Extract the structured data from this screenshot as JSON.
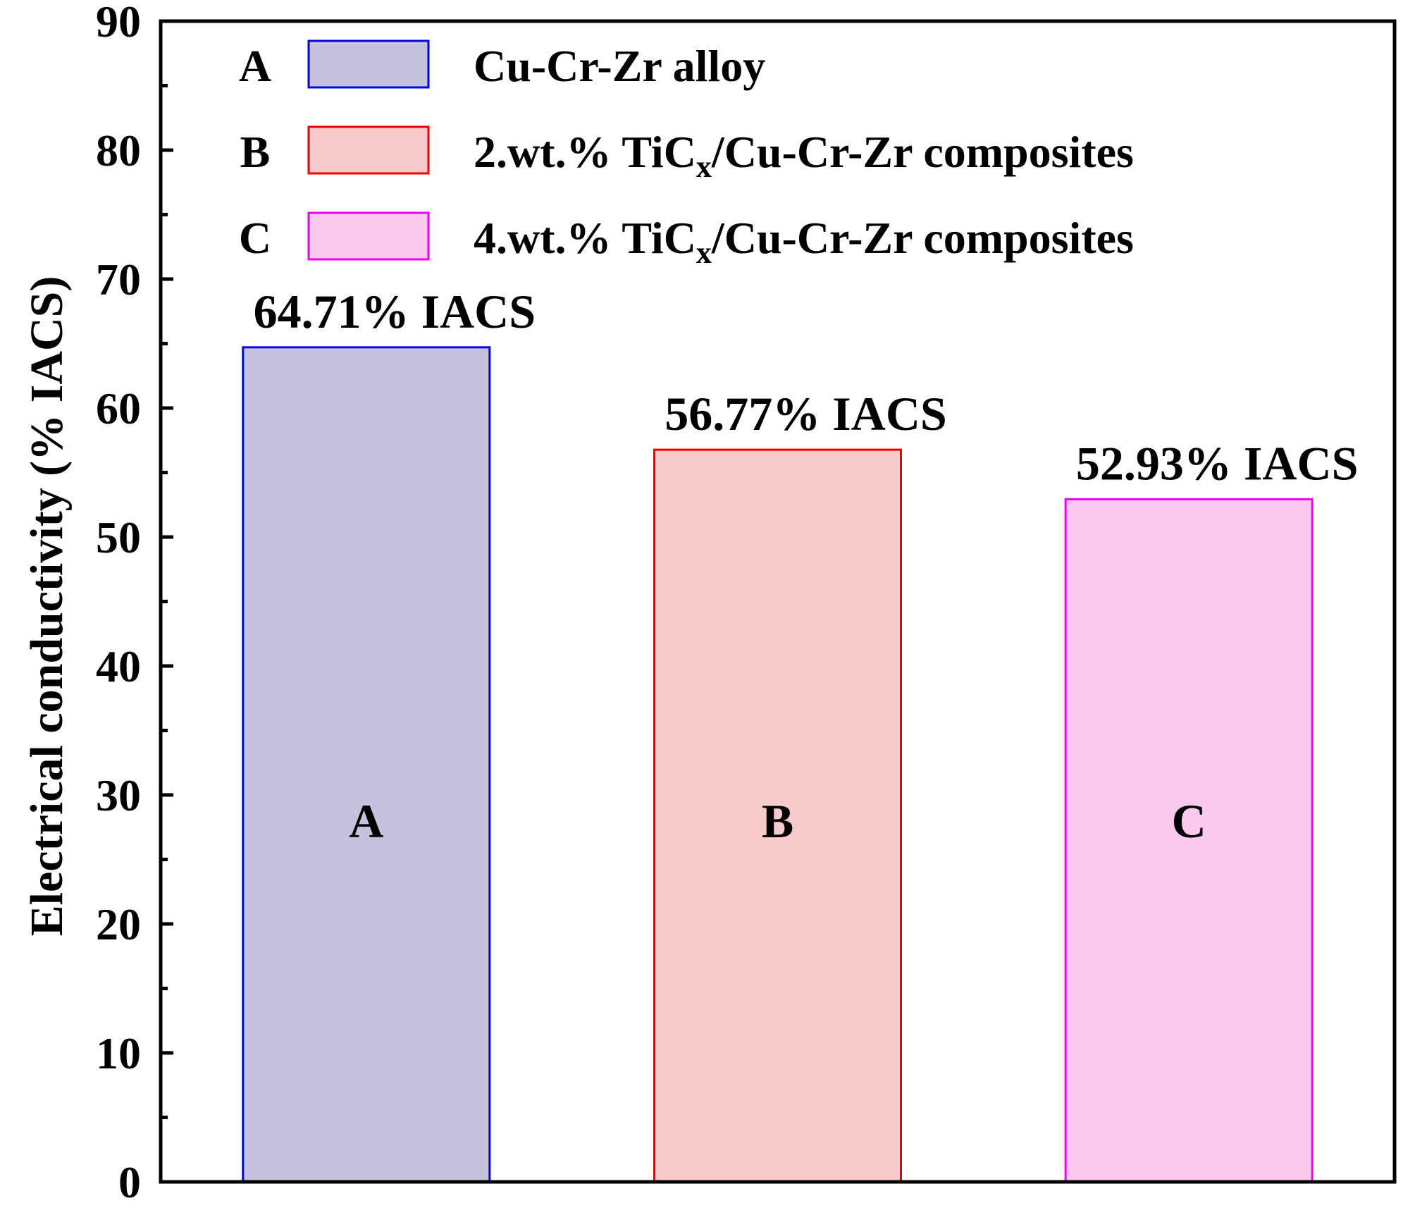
{
  "chart_data": {
    "type": "bar",
    "title": "",
    "xlabel": "",
    "ylabel": "Electrical conductivity (% IACS)",
    "ylim": [
      0,
      90
    ],
    "yticks": [
      "0",
      "10",
      "20",
      "30",
      "40",
      "50",
      "60",
      "70",
      "80",
      "90"
    ],
    "categories": [
      "A",
      "B",
      "C"
    ],
    "values": [
      64.71,
      56.77,
      52.93
    ],
    "data_labels": [
      "64.71% IACS",
      "56.77% IACS",
      "52.93% IACS"
    ],
    "bar_fills": [
      "#c6c1dc",
      "#f7cacb",
      "#f9caee"
    ],
    "bar_strokes": [
      "#0000ee",
      "#ee0000",
      "#ee00ee"
    ],
    "legend_placement": "top",
    "legend": [
      {
        "key": "A",
        "prefix": "Cu-Cr-Zr alloy",
        "sub": "",
        "suffix": ""
      },
      {
        "key": "B",
        "prefix": "2.wt.% TiC",
        "sub": "x",
        "suffix": "/Cu-Cr-Zr composites"
      },
      {
        "key": "C",
        "prefix": "4.wt.% TiC",
        "sub": "x",
        "suffix": "/Cu-Cr-Zr composites"
      }
    ]
  }
}
